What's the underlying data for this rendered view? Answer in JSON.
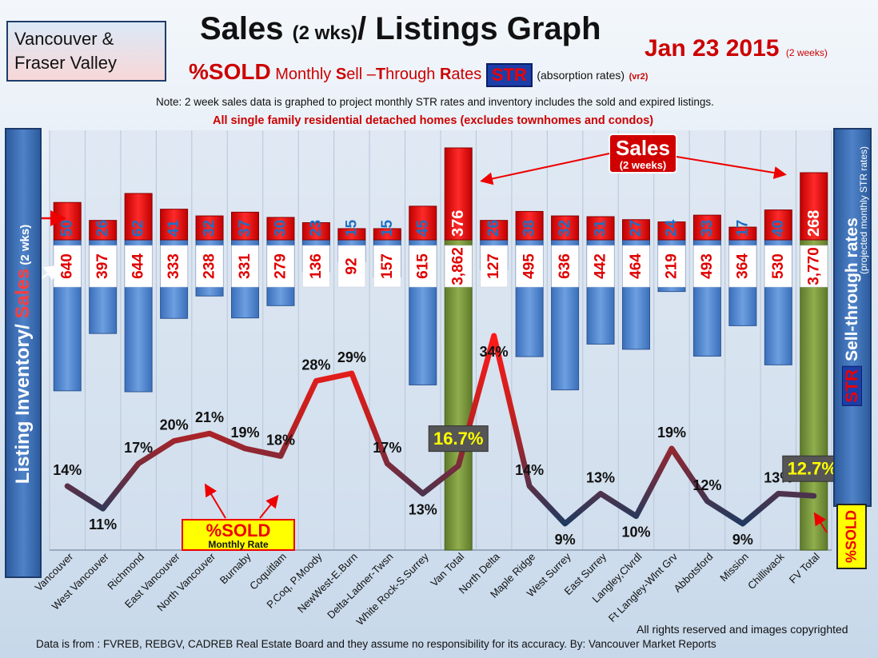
{
  "header": {
    "region_line1": "Vancouver &",
    "region_line2": "Fraser Valley",
    "title_main": "Sales ",
    "title_small": "(2 wks)",
    "title_rest": "/ Listings Graph",
    "date": "Jan 23 2015",
    "date_small": "(2 weeks)",
    "subtitle_sold": "%SOLD",
    "subtitle_m": "Monthly ",
    "subtitle_s": "S",
    "subtitle_ell": "ell –",
    "subtitle_t": "T",
    "subtitle_hrough": "hrough ",
    "subtitle_r": "R",
    "subtitle_ates": "ates",
    "str_badge": "STR",
    "absorption": "(absorption rates)",
    "version": "(vr2)",
    "note": "Note: 2 week sales data is graphed to project monthly STR rates and inventory includes the sold and expired listings.",
    "note2_bold": "All single family residential detached homes ",
    "note2_paren": "(excludes townhomes and condos)"
  },
  "side_labels": {
    "left_a": "Listing Inventory/ ",
    "left_b": "Sales",
    "left_c": " (2 wks)",
    "right_a": "STR",
    "right_b": " Sell-through rates",
    "right_small": "(projected monthly STR rates)",
    "right_sold": "%SOLD"
  },
  "callouts": {
    "sales_title": "Sales",
    "sales_sub": "(2 weeks)",
    "sold_title": "%SOLD",
    "sold_sub": "Monthly Rate"
  },
  "footer": {
    "rights": "All rights reserved and  images copyrighted",
    "source": "Data is from : FVREB, REBGV, CADREB Real Estate Board and they assume no responsibility for its accuracy. By: Vancouver Market Reports"
  },
  "chart_data": {
    "type": "bar",
    "categories": [
      "Vancouver",
      "West Vancouver",
      "Richmond",
      "East Vancouver",
      "North Vancouver",
      "Burnaby",
      "Coquitlam",
      "P.Coq, P.Moody",
      "NewWest-E.Burn",
      "Delta-Ladner-Twsn",
      "White Rock-S.Surrey",
      "Van Total",
      "North Delta",
      "Maple Ridge",
      "West Surrey",
      "East Surrey",
      "Langley,Clvrdl",
      "Ft Langley-Wlnt Grv",
      "Abbotsford",
      "Mission",
      "Chilliwack",
      "FV Total"
    ],
    "series": [
      {
        "name": "Sales",
        "values": [
          50,
          26,
          62,
          41,
          32,
          37,
          30,
          23,
          15,
          15,
          45,
          376,
          26,
          38,
          32,
          31,
          27,
          24,
          33,
          17,
          40,
          268
        ]
      },
      {
        "name": "Listing Inventory",
        "values": [
          640,
          397,
          644,
          333,
          238,
          331,
          279,
          136,
          92,
          157,
          615,
          3862,
          127,
          495,
          636,
          442,
          464,
          219,
          493,
          364,
          530,
          3770
        ]
      },
      {
        "name": "%SOLD",
        "values": [
          14,
          11,
          17,
          20,
          21,
          19,
          18,
          28,
          29,
          17,
          13,
          16.7,
          34,
          14,
          9,
          13,
          10,
          19,
          12,
          9,
          13,
          12.7
        ]
      }
    ],
    "sold_labels": [
      "14%",
      "11%",
      "17%",
      "20%",
      "21%",
      "19%",
      "18%",
      "28%",
      "29%",
      "17%",
      "13%",
      "16.7%",
      "34%",
      "14%",
      "9%",
      "13%",
      "10%",
      "19%",
      "12%",
      "9%",
      "13%",
      "12.7%"
    ],
    "total_categories": [
      "Van Total",
      "FV Total"
    ],
    "colors": {
      "sales": "#e00000",
      "inventory": "#4f86d0",
      "total": "#77933c",
      "line_high": "#ff1a1a",
      "line_low": "#1f3a5f"
    }
  }
}
